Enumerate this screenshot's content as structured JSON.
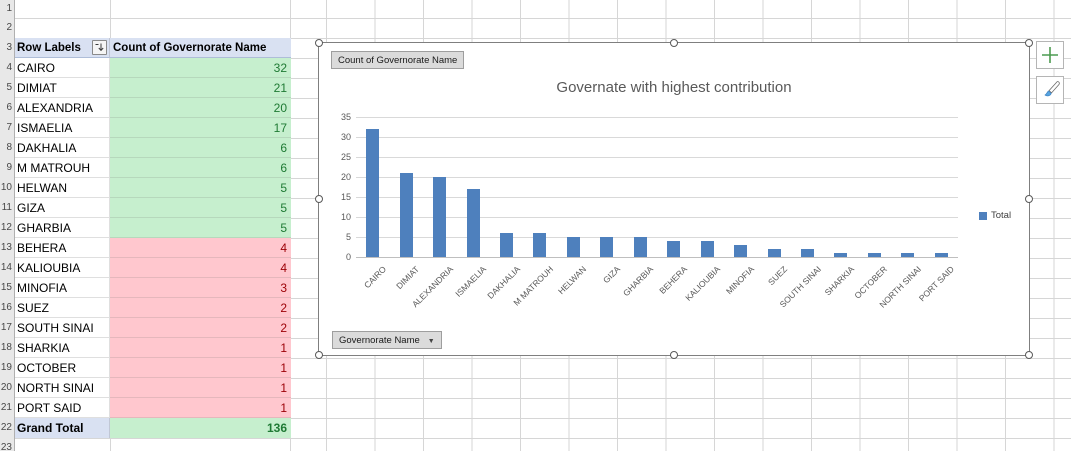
{
  "sheet": {
    "row_numbers": [
      "1",
      "2",
      "3",
      "4",
      "5",
      "6",
      "7",
      "8",
      "9",
      "10",
      "11",
      "12",
      "13",
      "14",
      "15",
      "16",
      "17",
      "18",
      "19",
      "20",
      "21",
      "22",
      "23"
    ]
  },
  "pivot_table": {
    "header": {
      "rows_label": "Row Labels",
      "values_label": "Count of Governorate Name"
    },
    "rows": [
      {
        "label": "CAIRO",
        "value": "32",
        "status": "good"
      },
      {
        "label": "DIMIAT",
        "value": "21",
        "status": "good"
      },
      {
        "label": "ALEXANDRIA",
        "value": "20",
        "status": "good"
      },
      {
        "label": "ISMAELIA",
        "value": "17",
        "status": "good"
      },
      {
        "label": "DAKHALIA",
        "value": "6",
        "status": "good"
      },
      {
        "label": "M MATROUH",
        "value": "6",
        "status": "good"
      },
      {
        "label": "HELWAN",
        "value": "5",
        "status": "good"
      },
      {
        "label": "GIZA",
        "value": "5",
        "status": "good"
      },
      {
        "label": "GHARBIA",
        "value": "5",
        "status": "good"
      },
      {
        "label": "BEHERA",
        "value": "4",
        "status": "bad"
      },
      {
        "label": "KALIOUBIA",
        "value": "4",
        "status": "bad"
      },
      {
        "label": "MINOFIA",
        "value": "3",
        "status": "bad"
      },
      {
        "label": "SUEZ",
        "value": "2",
        "status": "bad"
      },
      {
        "label": "SOUTH SINAI",
        "value": "2",
        "status": "bad"
      },
      {
        "label": "SHARKIA",
        "value": "1",
        "status": "bad"
      },
      {
        "label": "OCTOBER",
        "value": "1",
        "status": "bad"
      },
      {
        "label": "NORTH SINAI",
        "value": "1",
        "status": "bad"
      },
      {
        "label": "PORT SAID",
        "value": "1",
        "status": "bad"
      }
    ],
    "grand_total": {
      "label": "Grand Total",
      "value": "136"
    },
    "colors": {
      "good_bg": "#C6EFCE",
      "good_text": "#1F7A34",
      "bad_bg": "#FFC7CE",
      "bad_text": "#9C0006",
      "header_bg": "#D9E1F2"
    }
  },
  "chart": {
    "value_field_button": "Count of Governorate Name",
    "axis_field_button": "Governorate Name",
    "legend_label": "Total",
    "bar_color": "#4E80BD"
  },
  "chart_data": {
    "type": "bar",
    "title": "Governate with highest contribution",
    "categories": [
      "CAIRO",
      "DIMIAT",
      "ALEXANDRIA",
      "ISMAELIA",
      "DAKHALIA",
      "M MATROUH",
      "HELWAN",
      "GIZA",
      "GHARBIA",
      "BEHERA",
      "KALIOUBIA",
      "MINOFIA",
      "SUEZ",
      "SOUTH SINAI",
      "SHARKIA",
      "OCTOBER",
      "NORTH SINAI",
      "PORT SAID"
    ],
    "series": [
      {
        "name": "Total",
        "values": [
          32,
          21,
          20,
          17,
          6,
          6,
          5,
          5,
          5,
          4,
          4,
          3,
          2,
          2,
          1,
          1,
          1,
          1
        ]
      }
    ],
    "xlabel": "",
    "ylabel": "",
    "ylim": [
      0,
      35
    ],
    "yticks": [
      0,
      5,
      10,
      15,
      20,
      25,
      30,
      35
    ],
    "legend_position": "right",
    "grid": true
  },
  "side_buttons": {
    "chart_elements": "plus-icon",
    "chart_styles": "paintbrush-icon"
  }
}
